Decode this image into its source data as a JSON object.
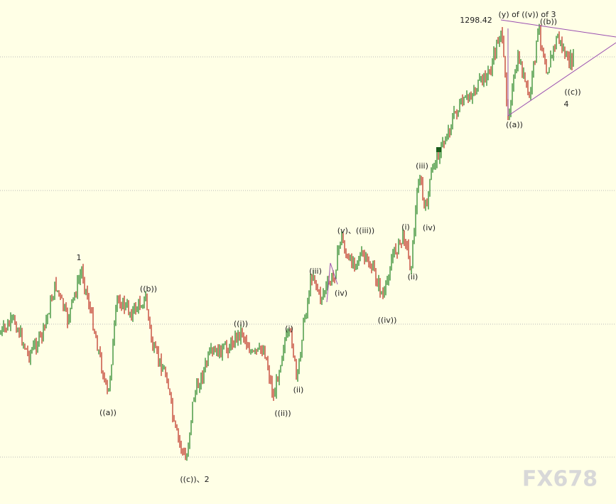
{
  "price_label": "1298.42",
  "wave_labels": [
    "(y) of ((v)) of 3",
    "((b))",
    "((c))",
    "4",
    "((a))",
    "(iii)",
    "(iv)",
    "(ii)",
    "(i)",
    "(v)、((iii))",
    "(iii)",
    "(iv)",
    "((iv))",
    "1",
    "((b))",
    "((i))",
    "(i)",
    "(ii)",
    "((a))",
    "((ii))",
    "((c))、2"
  ],
  "watermark": "FX678"
}
